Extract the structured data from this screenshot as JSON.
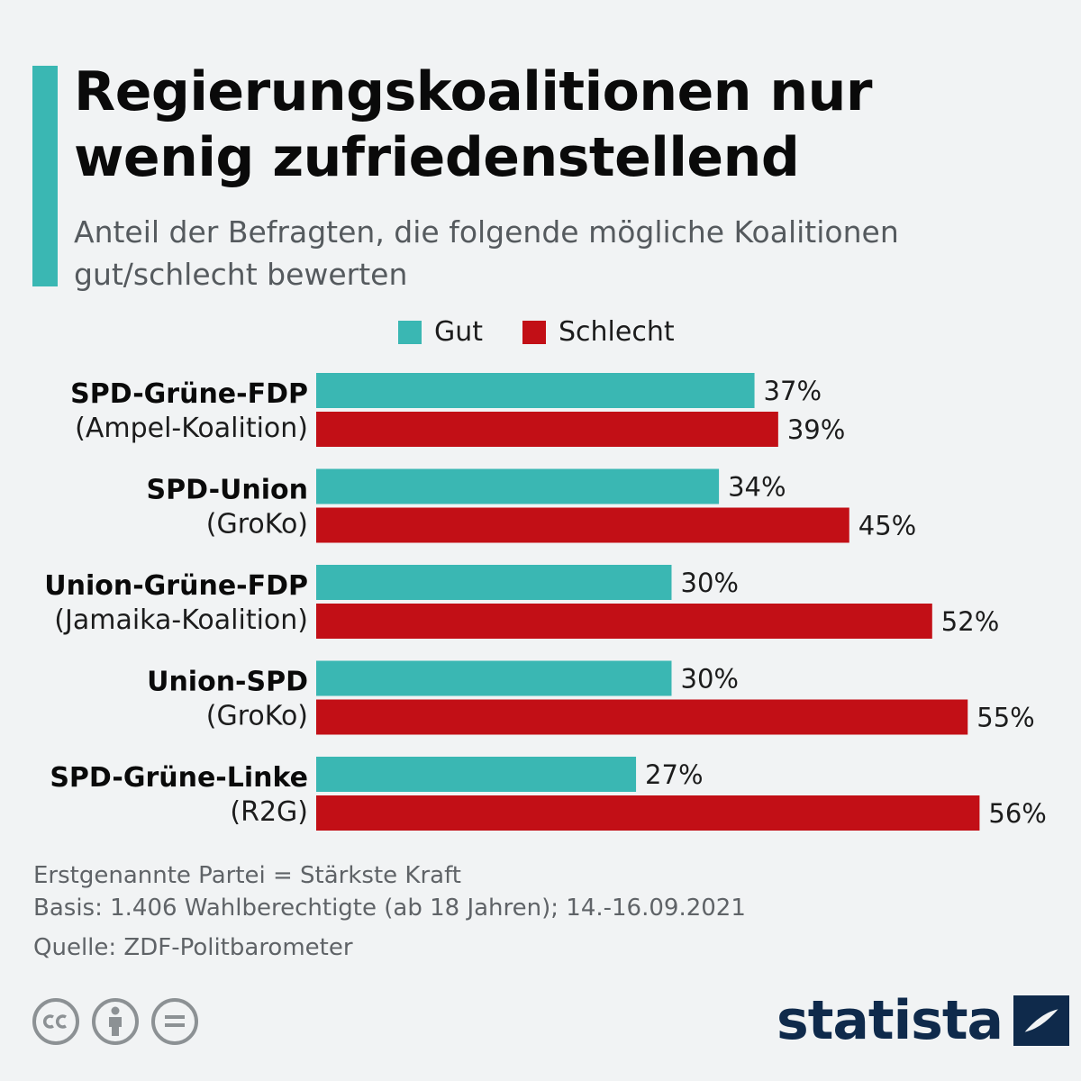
{
  "header": {
    "title": "Regierungskoalitionen nur wenig zufriedenstellend",
    "subtitle": "Anteil der Befragten, die folgende mögliche Koalitionen gut/schlecht bewerten"
  },
  "legend": {
    "items": [
      {
        "label": "Gut",
        "color": "#3ab7b3"
      },
      {
        "label": "Schlecht",
        "color": "#c20f16"
      }
    ]
  },
  "chart_data": {
    "type": "bar",
    "orientation": "horizontal",
    "value_suffix": "%",
    "categories": [
      {
        "name": "SPD-Grüne-FDP",
        "sub": "(Ampel-Koalition)"
      },
      {
        "name": "SPD-Union",
        "sub": "(GroKo)"
      },
      {
        "name": "Union-Grüne-FDP",
        "sub": "(Jamaika-Koalition)"
      },
      {
        "name": "Union-SPD",
        "sub": "(GroKo)"
      },
      {
        "name": "SPD-Grüne-Linke",
        "sub": "(R2G)"
      }
    ],
    "series": [
      {
        "name": "Gut",
        "color": "#3ab7b3",
        "values": [
          37,
          34,
          30,
          30,
          27
        ]
      },
      {
        "name": "Schlecht",
        "color": "#c20f16",
        "values": [
          39,
          45,
          52,
          55,
          56
        ]
      }
    ],
    "xlim": [
      0,
      60
    ],
    "grid": false,
    "legend_position": "top"
  },
  "footer": {
    "note": "Erstgenannte Partei = Stärkste Kraft",
    "basis": "Basis: 1.406 Wahlberechtigte (ab 18 Jahren); 14.-16.09.2021",
    "source": "Quelle: ZDF-Politbarometer"
  },
  "license_icons": [
    "cc-icon",
    "attribution-icon",
    "no-derivatives-icon"
  ],
  "brand": {
    "name": "statista",
    "color": "#0f2a4b"
  }
}
